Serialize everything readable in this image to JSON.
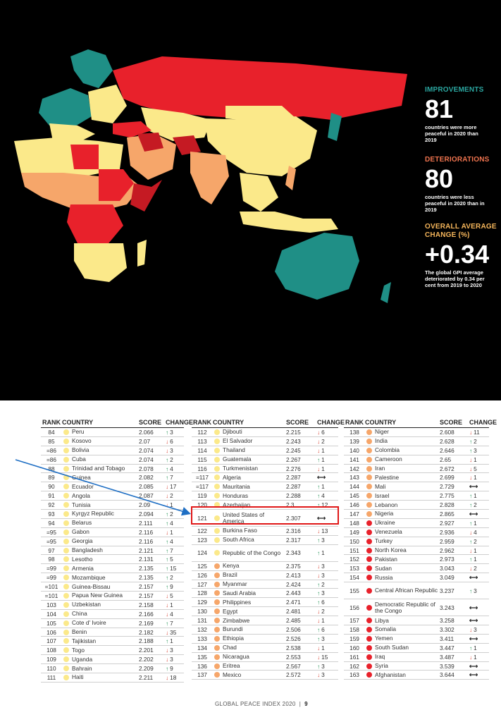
{
  "stats": {
    "improvements": {
      "label": "IMPROVEMENTS",
      "value": "81",
      "desc": "countries were more peaceful in 2020 than 2019"
    },
    "deteriorations": {
      "label": "DETERIORATIONS",
      "value": "80",
      "desc": "countries were less peaceful in 2020 than in 2019"
    },
    "average": {
      "label": "OVERALL AVERAGE CHANGE (%)",
      "value": "+0.34",
      "desc": "The global GPI average deteriorated by 0.34 per cent from 2019 to 2020"
    }
  },
  "colors": {
    "very_high": "#1f8f86",
    "high": "#fbe98a",
    "medium": "#f6a66a",
    "low": "#e8212b",
    "very_low": "#c51a23",
    "up_arrow": "#1a8f4e",
    "down_arrow": "#d93b2b",
    "highlight": "#e01818",
    "pointer": "#1f6fc4"
  },
  "headers": {
    "rank": "RANK",
    "country": "COUNTRY",
    "score": "SCORE",
    "change": "CHANGE"
  },
  "tables": [
    [
      {
        "rank": "84",
        "country": "Peru",
        "score": "2.066",
        "dir": "up",
        "n": "3",
        "dot": "#fbe98a"
      },
      {
        "rank": "85",
        "country": "Kosovo",
        "score": "2.07",
        "dir": "down",
        "n": "6",
        "dot": "#fbe98a"
      },
      {
        "rank": "=86",
        "country": "Bolivia",
        "score": "2.074",
        "dir": "down",
        "n": "3",
        "dot": "#fbe98a"
      },
      {
        "rank": "=86",
        "country": "Cuba",
        "score": "2.074",
        "dir": "up",
        "n": "2",
        "dot": "#fbe98a"
      },
      {
        "rank": "88",
        "country": "Trinidad and Tobago",
        "score": "2.078",
        "dir": "up",
        "n": "4",
        "dot": "#fbe98a"
      },
      {
        "rank": "89",
        "country": "Guinea",
        "score": "2.082",
        "dir": "up",
        "n": "7",
        "dot": "#fbe98a"
      },
      {
        "rank": "90",
        "country": "Ecuador",
        "score": "2.085",
        "dir": "down",
        "n": "17",
        "dot": "#fbe98a"
      },
      {
        "rank": "91",
        "country": "Angola",
        "score": "2.087",
        "dir": "down",
        "n": "2",
        "dot": "#fbe98a"
      },
      {
        "rank": "92",
        "country": "Tunisia",
        "score": "2.09",
        "dir": "down",
        "n": "1",
        "dot": "#fbe98a"
      },
      {
        "rank": "93",
        "country": "Kyrgyz Republic",
        "score": "2.094",
        "dir": "up",
        "n": "2",
        "dot": "#fbe98a"
      },
      {
        "rank": "94",
        "country": "Belarus",
        "score": "2.111",
        "dir": "up",
        "n": "4",
        "dot": "#fbe98a"
      },
      {
        "rank": "=95",
        "country": "Gabon",
        "score": "2.116",
        "dir": "down",
        "n": "1",
        "dot": "#fbe98a"
      },
      {
        "rank": "=95",
        "country": "Georgia",
        "score": "2.116",
        "dir": "up",
        "n": "4",
        "dot": "#fbe98a"
      },
      {
        "rank": "97",
        "country": "Bangladesh",
        "score": "2.121",
        "dir": "up",
        "n": "7",
        "dot": "#fbe98a"
      },
      {
        "rank": "98",
        "country": "Lesotho",
        "score": "2.131",
        "dir": "up",
        "n": "5",
        "dot": "#fbe98a"
      },
      {
        "rank": "=99",
        "country": "Armenia",
        "score": "2.135",
        "dir": "up",
        "n": "15",
        "dot": "#fbe98a"
      },
      {
        "rank": "=99",
        "country": "Mozambique",
        "score": "2.135",
        "dir": "up",
        "n": "2",
        "dot": "#fbe98a"
      },
      {
        "rank": "=101",
        "country": "Guinea-Bissau",
        "score": "2.157",
        "dir": "up",
        "n": "9",
        "dot": "#fbe98a"
      },
      {
        "rank": "=101",
        "country": "Papua New Guinea",
        "score": "2.157",
        "dir": "down",
        "n": "5",
        "dot": "#fbe98a"
      },
      {
        "rank": "103",
        "country": "Uzbekistan",
        "score": "2.158",
        "dir": "down",
        "n": "1",
        "dot": "#fbe98a"
      },
      {
        "rank": "104",
        "country": "China",
        "score": "2.166",
        "dir": "down",
        "n": "4",
        "dot": "#fbe98a"
      },
      {
        "rank": "105",
        "country": "Cote d' Ivoire",
        "score": "2.169",
        "dir": "up",
        "n": "7",
        "dot": "#fbe98a"
      },
      {
        "rank": "106",
        "country": "Benin",
        "score": "2.182",
        "dir": "down",
        "n": "35",
        "dot": "#fbe98a"
      },
      {
        "rank": "107",
        "country": "Tajikistan",
        "score": "2.188",
        "dir": "up",
        "n": "1",
        "dot": "#fbe98a"
      },
      {
        "rank": "108",
        "country": "Togo",
        "score": "2.201",
        "dot": "#fbe98a",
        "dir": "down",
        "n": "3"
      },
      {
        "rank": "109",
        "country": "Uganda",
        "score": "2.202",
        "dir": "down",
        "n": "3",
        "dot": "#fbe98a"
      },
      {
        "rank": "110",
        "country": "Bahrain",
        "score": "2.209",
        "dir": "up",
        "n": "9",
        "dot": "#fbe98a"
      },
      {
        "rank": "111",
        "country": "Haiti",
        "score": "2.211",
        "dir": "down",
        "n": "18",
        "dot": "#fbe98a"
      }
    ],
    [
      {
        "rank": "112",
        "country": "Djibouti",
        "score": "2.215",
        "dir": "down",
        "n": "6",
        "dot": "#fbe98a"
      },
      {
        "rank": "113",
        "country": "El Salvador",
        "score": "2.243",
        "dir": "down",
        "n": "2",
        "dot": "#fbe98a"
      },
      {
        "rank": "114",
        "country": "Thailand",
        "score": "2.245",
        "dir": "down",
        "n": "1",
        "dot": "#fbe98a"
      },
      {
        "rank": "115",
        "country": "Guatemala",
        "score": "2.267",
        "dir": "up",
        "n": "1",
        "dot": "#fbe98a"
      },
      {
        "rank": "116",
        "country": "Turkmenistan",
        "score": "2.276",
        "dir": "down",
        "n": "1",
        "dot": "#fbe98a"
      },
      {
        "rank": "=117",
        "country": "Algeria",
        "score": "2.287",
        "dir": "flat",
        "n": "",
        "dot": "#fbe98a"
      },
      {
        "rank": "=117",
        "country": "Mauritania",
        "score": "2.287",
        "dir": "up",
        "n": "1",
        "dot": "#fbe98a"
      },
      {
        "rank": "119",
        "country": "Honduras",
        "score": "2.288",
        "dir": "up",
        "n": "4",
        "dot": "#fbe98a"
      },
      {
        "rank": "120",
        "country": "Azerbaijan",
        "score": "2.3",
        "dir": "up",
        "n": "12",
        "dot": "#fbe98a"
      },
      {
        "rank": "121",
        "country": "United States of America",
        "score": "2.307",
        "dir": "flat",
        "n": "",
        "dot": "#fbe98a",
        "tall": true
      },
      {
        "rank": "122",
        "country": "Burkina Faso",
        "score": "2.316",
        "dir": "down",
        "n": "13",
        "dot": "#fbe98a"
      },
      {
        "rank": "123",
        "country": "South Africa",
        "score": "2.317",
        "dir": "up",
        "n": "3",
        "dot": "#fbe98a"
      },
      {
        "rank": "124",
        "country": "Republic of the Congo",
        "score": "2.343",
        "dir": "up",
        "n": "1",
        "dot": "#fbe98a",
        "tall": true
      },
      {
        "rank": "125",
        "country": "Kenya",
        "score": "2.375",
        "dir": "down",
        "n": "3",
        "dot": "#f6a66a"
      },
      {
        "rank": "126",
        "country": "Brazil",
        "score": "2.413",
        "dir": "down",
        "n": "3",
        "dot": "#f6a66a"
      },
      {
        "rank": "127",
        "country": "Myanmar",
        "score": "2.424",
        "dir": "up",
        "n": "2",
        "dot": "#f6a66a"
      },
      {
        "rank": "128",
        "country": "Saudi Arabia",
        "score": "2.443",
        "dir": "up",
        "n": "3",
        "dot": "#f6a66a"
      },
      {
        "rank": "129",
        "country": "Philippines",
        "score": "2.471",
        "dir": "up",
        "n": "6",
        "dot": "#f6a66a"
      },
      {
        "rank": "130",
        "country": "Egypt",
        "score": "2.481",
        "dir": "down",
        "n": "2",
        "dot": "#f6a66a"
      },
      {
        "rank": "131",
        "country": "Zimbabwe",
        "score": "2.485",
        "dir": "down",
        "n": "1",
        "dot": "#f6a66a"
      },
      {
        "rank": "132",
        "country": "Burundi",
        "score": "2.506",
        "dir": "up",
        "n": "6",
        "dot": "#f6a66a"
      },
      {
        "rank": "133",
        "country": "Ethiopia",
        "score": "2.526",
        "dir": "up",
        "n": "3",
        "dot": "#f6a66a"
      },
      {
        "rank": "134",
        "country": "Chad",
        "score": "2.538",
        "dir": "down",
        "n": "1",
        "dot": "#f6a66a"
      },
      {
        "rank": "135",
        "country": "Nicaragua",
        "score": "2.553",
        "dir": "down",
        "n": "15",
        "dot": "#f6a66a"
      },
      {
        "rank": "136",
        "country": "Eritrea",
        "score": "2.567",
        "dir": "up",
        "n": "3",
        "dot": "#f6a66a"
      },
      {
        "rank": "137",
        "country": "Mexico",
        "score": "2.572",
        "dir": "down",
        "n": "3",
        "dot": "#f6a66a"
      }
    ],
    [
      {
        "rank": "138",
        "country": "Niger",
        "score": "2.608",
        "dir": "down",
        "n": "11",
        "dot": "#f6a66a"
      },
      {
        "rank": "139",
        "country": "India",
        "score": "2.628",
        "dir": "up",
        "n": "2",
        "dot": "#f6a66a"
      },
      {
        "rank": "140",
        "country": "Colombia",
        "score": "2.646",
        "dir": "up",
        "n": "3",
        "dot": "#f6a66a"
      },
      {
        "rank": "141",
        "country": "Cameroon",
        "score": "2.65",
        "dir": "down",
        "n": "1",
        "dot": "#f6a66a"
      },
      {
        "rank": "142",
        "country": "Iran",
        "score": "2.672",
        "dir": "down",
        "n": "5",
        "dot": "#f6a66a"
      },
      {
        "rank": "143",
        "country": "Palestine",
        "score": "2.699",
        "dir": "down",
        "n": "1",
        "dot": "#f6a66a"
      },
      {
        "rank": "144",
        "country": "Mali",
        "score": "2.729",
        "dir": "flat",
        "n": "",
        "dot": "#f6a66a"
      },
      {
        "rank": "145",
        "country": "Israel",
        "score": "2.775",
        "dir": "up",
        "n": "1",
        "dot": "#f6a66a"
      },
      {
        "rank": "146",
        "country": "Lebanon",
        "score": "2.828",
        "dir": "up",
        "n": "2",
        "dot": "#f6a66a"
      },
      {
        "rank": "147",
        "country": "Nigeria",
        "score": "2.865",
        "dir": "flat",
        "n": "",
        "dot": "#f6a66a"
      },
      {
        "rank": "148",
        "country": "Ukraine",
        "score": "2.927",
        "dir": "up",
        "n": "1",
        "dot": "#e8212b"
      },
      {
        "rank": "149",
        "country": "Venezuela",
        "score": "2.936",
        "dir": "down",
        "n": "4",
        "dot": "#e8212b"
      },
      {
        "rank": "150",
        "country": "Turkey",
        "score": "2.959",
        "dir": "up",
        "n": "2",
        "dot": "#e8212b"
      },
      {
        "rank": "151",
        "country": "North Korea",
        "score": "2.962",
        "dir": "down",
        "n": "1",
        "dot": "#e8212b"
      },
      {
        "rank": "152",
        "country": "Pakistan",
        "score": "2.973",
        "dir": "up",
        "n": "1",
        "dot": "#e8212b"
      },
      {
        "rank": "153",
        "country": "Sudan",
        "score": "3.043",
        "dir": "down",
        "n": "2",
        "dot": "#e8212b"
      },
      {
        "rank": "154",
        "country": "Russia",
        "score": "3.049",
        "dir": "flat",
        "n": "",
        "dot": "#e8212b"
      },
      {
        "rank": "155",
        "country": "Central African Republic",
        "score": "3.237",
        "dir": "up",
        "n": "3",
        "dot": "#e8212b",
        "tall": true
      },
      {
        "rank": "156",
        "country": "Democratic Republic of the Congo",
        "score": "3.243",
        "dir": "flat",
        "n": "",
        "dot": "#e8212b",
        "tall": true
      },
      {
        "rank": "157",
        "country": "Libya",
        "score": "3.258",
        "dir": "flat",
        "n": "",
        "dot": "#e8212b"
      },
      {
        "rank": "158",
        "country": "Somalia",
        "score": "3.302",
        "dir": "down",
        "n": "3",
        "dot": "#e8212b"
      },
      {
        "rank": "159",
        "country": "Yemen",
        "score": "3.411",
        "dir": "flat",
        "n": "",
        "dot": "#e8212b"
      },
      {
        "rank": "160",
        "country": "South Sudan",
        "score": "3.447",
        "dir": "up",
        "n": "1",
        "dot": "#e8212b"
      },
      {
        "rank": "161",
        "country": "Iraq",
        "score": "3.487",
        "dir": "down",
        "n": "1",
        "dot": "#e8212b"
      },
      {
        "rank": "162",
        "country": "Syria",
        "score": "3.539",
        "dir": "flat",
        "n": "",
        "dot": "#e8212b"
      },
      {
        "rank": "163",
        "country": "Afghanistan",
        "score": "3.644",
        "dir": "flat",
        "n": "",
        "dot": "#e8212b"
      }
    ]
  ],
  "footer": {
    "title": "GLOBAL PEACE INDEX 2020",
    "page": "9"
  }
}
